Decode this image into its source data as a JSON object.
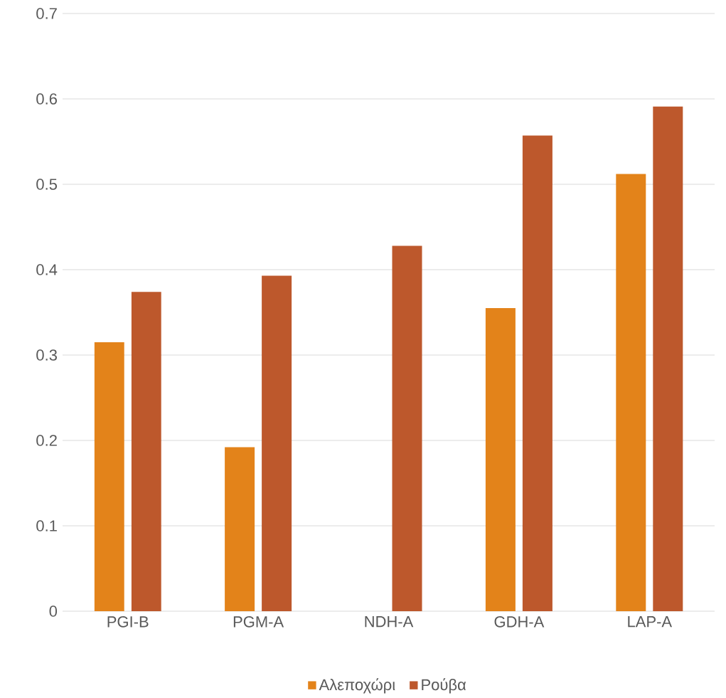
{
  "chart_data": {
    "type": "bar",
    "categories": [
      "PGI-B",
      "PGM-A",
      "NDH-A",
      "GDH-A",
      "LAP-A"
    ],
    "series": [
      {
        "name": "Αλεποχώρι",
        "color": "#e3831a",
        "values": [
          0.315,
          0.192,
          0,
          0.355,
          0.512
        ]
      },
      {
        "name": "Ρούβα",
        "color": "#bd582c",
        "values": [
          0.374,
          0.393,
          0.428,
          0.557,
          0.591
        ]
      }
    ],
    "ylim": [
      0,
      0.7
    ],
    "yticks": [
      0,
      0.1,
      0.2,
      0.3,
      0.4,
      0.5,
      0.6,
      0.7
    ],
    "grid": "y",
    "legend": "bottom"
  }
}
